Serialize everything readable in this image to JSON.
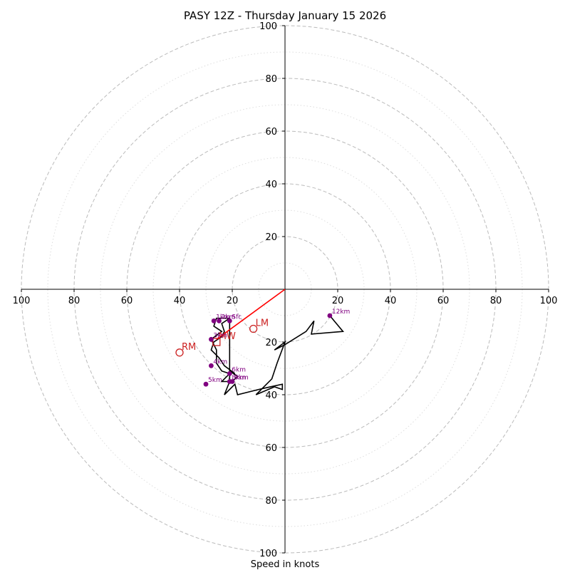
{
  "chart_data": {
    "type": "hodograph",
    "title": "PASY 12Z - Thursday January 15 2026",
    "xlabel": "Speed in knots",
    "max_speed": 100,
    "major_rings": [
      20,
      40,
      60,
      80,
      100
    ],
    "minor_rings": [
      10,
      30,
      50,
      70,
      90
    ],
    "x_tick_labels": [
      "100",
      "80",
      "60",
      "40",
      "20",
      "20",
      "40",
      "60",
      "80",
      "100"
    ],
    "y_tick_labels": [
      "100",
      "80",
      "60",
      "40",
      "20",
      "20",
      "40",
      "60",
      "80",
      "100"
    ],
    "hodograph_trace": [
      [
        -21,
        -11
      ],
      [
        -26,
        -11
      ],
      [
        -27,
        -14
      ],
      [
        -24,
        -16
      ],
      [
        -28,
        -19
      ],
      [
        -26,
        -23
      ],
      [
        -26,
        -28
      ],
      [
        -24,
        -31
      ],
      [
        -21,
        -32
      ],
      [
        -24,
        -35
      ],
      [
        -20,
        -35
      ],
      [
        -18,
        -33
      ],
      [
        -21,
        -31
      ],
      [
        -19,
        -32
      ],
      [
        -23,
        -29
      ],
      [
        -25,
        -26
      ],
      [
        -28,
        -23
      ],
      [
        -27,
        -20
      ],
      [
        -24,
        -18
      ],
      [
        -23,
        -16
      ],
      [
        -24,
        -13
      ],
      [
        -21,
        -11
      ],
      [
        -21,
        -35
      ],
      [
        -23,
        -40
      ],
      [
        -19,
        -36
      ],
      [
        -18,
        -40
      ],
      [
        -10,
        -38
      ],
      [
        -1,
        -36
      ],
      [
        -1,
        -38
      ],
      [
        -4,
        -37
      ],
      [
        -11,
        -40
      ],
      [
        -5,
        -34
      ],
      [
        -3,
        -28
      ],
      [
        0,
        -20
      ],
      [
        -4,
        -23
      ],
      [
        0,
        -21
      ],
      [
        8,
        -16
      ],
      [
        11,
        -12
      ],
      [
        10,
        -17
      ],
      [
        22,
        -16
      ],
      [
        17,
        -10
      ]
    ],
    "height_points": [
      {
        "label": "Sfc",
        "u": -21,
        "v": -12
      },
      {
        "label": "2km",
        "u": -25,
        "v": -12
      },
      {
        "label": "1km",
        "u": -27,
        "v": -12
      },
      {
        "label": "3km",
        "u": -28,
        "v": -19
      },
      {
        "label": "4km",
        "u": -28,
        "v": -29
      },
      {
        "label": "5km",
        "u": -30,
        "v": -36
      },
      {
        "label": "6km",
        "u": -21,
        "v": -32
      },
      {
        "label": "8km",
        "u": -21,
        "v": -35
      },
      {
        "label": "9km",
        "u": -20,
        "v": -35
      },
      {
        "label": "12km",
        "u": 17,
        "v": -10
      }
    ],
    "storm_motion_vectors": [
      {
        "label": "RM",
        "u": -40,
        "v": -24,
        "marker": "circle"
      },
      {
        "label": "LM",
        "u": -12,
        "v": -15,
        "marker": "circle"
      },
      {
        "label": "MW",
        "u": -26,
        "v": -20,
        "marker": "square"
      }
    ],
    "shear_vector": {
      "from": [
        0,
        0
      ],
      "to": [
        -26,
        -19
      ]
    },
    "colors": {
      "trace": "#000000",
      "height_points": "#800080",
      "storm_motion": "#cc2222",
      "shear_vector": "#ff0000",
      "major_grid": "#bbbbbb",
      "minor_grid": "#dddddd"
    }
  }
}
